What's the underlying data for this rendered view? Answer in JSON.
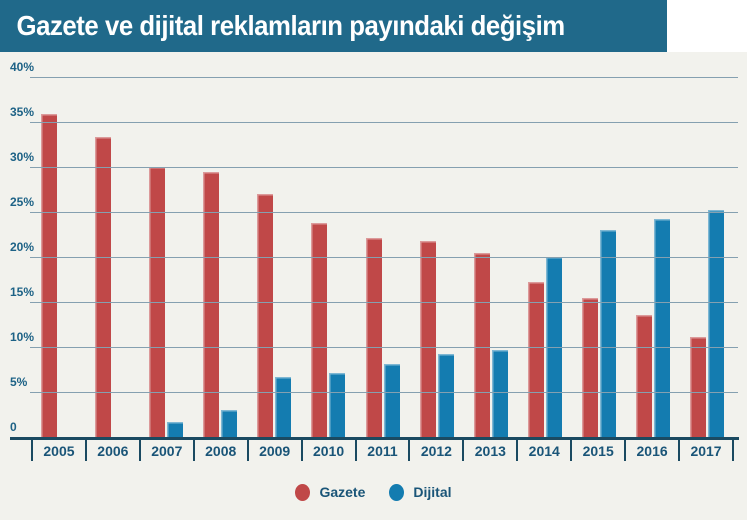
{
  "title": "Gazete ve dijital reklamların payındaki değişim",
  "colors": {
    "header_bg": "#20698a",
    "canvas_bg": "#f2f2ed",
    "gridline": "#85a0b0",
    "axis": "#1b4a61",
    "y_tick_text": "#1d6286",
    "x_tick_text": "#1a5578",
    "gazete_red": "#c04848",
    "dijital_blue": "#147cb0",
    "title_text": "#ffffff"
  },
  "chart_data": {
    "type": "bar",
    "title": "Gazete ve dijital reklamların payındaki değişim",
    "categories": [
      "2005",
      "2006",
      "2007",
      "2008",
      "2009",
      "2010",
      "2011",
      "2012",
      "2013",
      "2014",
      "2015",
      "2016",
      "2017"
    ],
    "series": [
      {
        "name": "Gazete",
        "color": "#c04848",
        "values": [
          35.9,
          33.3,
          30.0,
          29.4,
          27.0,
          23.8,
          22.1,
          21.8,
          20.5,
          17.2,
          15.4,
          13.6,
          11.1
        ]
      },
      {
        "name": "Dijital",
        "color": "#147cb0",
        "values": [
          null,
          null,
          1.7,
          3.0,
          6.7,
          7.1,
          8.1,
          9.2,
          9.7,
          20.0,
          23.0,
          24.2,
          25.2
        ]
      }
    ],
    "xlabel": "",
    "ylabel": "",
    "ylim": [
      0,
      40
    ],
    "ytick_labels": [
      "40%",
      "35%",
      "30%",
      "25%",
      "20%",
      "15%",
      "10%",
      "5%",
      "0"
    ],
    "grid": true,
    "legend_position": "bottom",
    "legend_labels": [
      "Gazete",
      "Dijital"
    ]
  }
}
